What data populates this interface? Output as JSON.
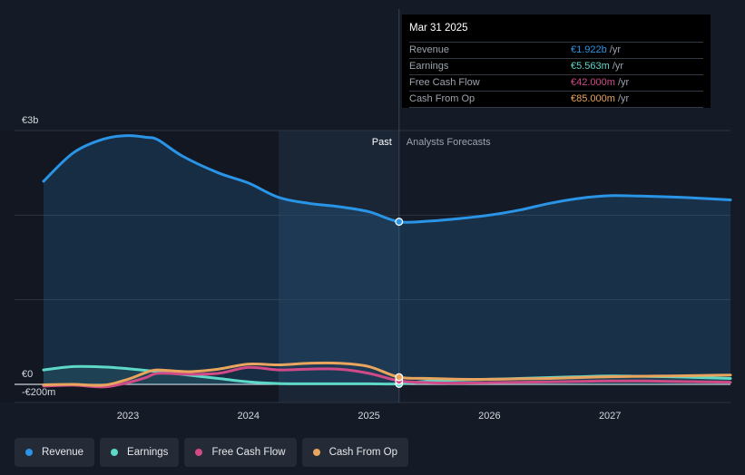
{
  "tooltip": {
    "date": "Mar 31 2025",
    "rows": [
      {
        "label": "Revenue",
        "value": "€1.922b",
        "unit": "/yr",
        "color": "#2a94e6"
      },
      {
        "label": "Earnings",
        "value": "€5.563m",
        "unit": "/yr",
        "color": "#5ed8c7"
      },
      {
        "label": "Free Cash Flow",
        "value": "€42.000m",
        "unit": "/yr",
        "color": "#d14a88"
      },
      {
        "label": "Cash From Op",
        "value": "€85.000m",
        "unit": "/yr",
        "color": "#e9a45e"
      }
    ]
  },
  "legend": [
    {
      "label": "Revenue",
      "color": "#2a94e6"
    },
    {
      "label": "Earnings",
      "color": "#5ed8c7"
    },
    {
      "label": "Free Cash Flow",
      "color": "#d14a88"
    },
    {
      "label": "Cash From Op",
      "color": "#e9a45e"
    }
  ],
  "chart_data": {
    "type": "line",
    "y_tick_labels": [
      "€3b",
      "€0",
      "-€200m"
    ],
    "x_tick_labels": [
      "2023",
      "2024",
      "2025",
      "2026",
      "2027"
    ],
    "past_label": "Past",
    "forecast_label": "Analysts Forecasts",
    "divider_date": 2025.25,
    "xlim": [
      2022.3,
      2028.0
    ],
    "ylim": [
      -200,
      3000
    ],
    "grid": true,
    "highlight_range": [
      2024.25,
      2025.25
    ],
    "series": [
      {
        "name": "Revenue",
        "color": "#2a94e6",
        "area": true,
        "x": [
          2022.3,
          2022.55,
          2022.8,
          2023.0,
          2023.15,
          2023.25,
          2023.45,
          2023.75,
          2024.0,
          2024.25,
          2024.5,
          2024.75,
          2025.0,
          2025.25,
          2025.5,
          2025.75,
          2026.0,
          2026.25,
          2026.5,
          2026.75,
          2027.0,
          2027.25,
          2027.5,
          2027.75,
          2028.0
        ],
        "y": [
          2400,
          2740,
          2900,
          2940,
          2920,
          2890,
          2700,
          2500,
          2380,
          2210,
          2140,
          2100,
          2040,
          1922,
          1930,
          1960,
          2000,
          2060,
          2140,
          2200,
          2230,
          2225,
          2215,
          2200,
          2180
        ]
      },
      {
        "name": "Earnings",
        "color": "#5ed8c7",
        "area": true,
        "x": [
          2022.3,
          2022.55,
          2022.8,
          2023.0,
          2023.25,
          2023.5,
          2023.75,
          2024.0,
          2024.25,
          2024.5,
          2024.75,
          2025.0,
          2025.25,
          2025.5,
          2025.75,
          2026.0,
          2026.25,
          2026.5,
          2026.75,
          2027.0,
          2027.25,
          2027.5,
          2027.75,
          2028.0
        ],
        "y": [
          170,
          210,
          205,
          185,
          150,
          110,
          70,
          30,
          10,
          6,
          6,
          6,
          5.6,
          40,
          50,
          60,
          70,
          80,
          90,
          100,
          95,
          90,
          80,
          70
        ]
      },
      {
        "name": "Free Cash Flow",
        "color": "#d14a88",
        "area": false,
        "x": [
          2022.3,
          2022.55,
          2022.8,
          2023.0,
          2023.15,
          2023.25,
          2023.5,
          2023.75,
          2024.0,
          2024.25,
          2024.5,
          2024.75,
          2025.0,
          2025.25,
          2025.5,
          2025.75,
          2026.0,
          2026.25,
          2026.5,
          2026.75,
          2027.0,
          2027.25,
          2027.5,
          2027.75,
          2028.0
        ],
        "y": [
          -20,
          -10,
          -30,
          20,
          80,
          130,
          120,
          130,
          200,
          170,
          180,
          180,
          130,
          42,
          20,
          15,
          20,
          25,
          30,
          35,
          40,
          40,
          35,
          30,
          25
        ]
      },
      {
        "name": "Cash From Op",
        "color": "#e9a45e",
        "area": false,
        "x": [
          2022.3,
          2022.55,
          2022.8,
          2023.0,
          2023.15,
          2023.25,
          2023.5,
          2023.75,
          2024.0,
          2024.25,
          2024.5,
          2024.75,
          2025.0,
          2025.25,
          2025.5,
          2025.75,
          2026.0,
          2026.25,
          2026.5,
          2026.75,
          2027.0,
          2027.25,
          2027.5,
          2027.75,
          2028.0
        ],
        "y": [
          -5,
          0,
          -10,
          60,
          140,
          170,
          150,
          180,
          240,
          230,
          250,
          250,
          210,
          85,
          70,
          60,
          60,
          65,
          70,
          80,
          90,
          95,
          100,
          105,
          110
        ]
      }
    ],
    "marker_x": 2025.25,
    "marker_values": [
      1922,
      5.563,
      42,
      85
    ]
  }
}
